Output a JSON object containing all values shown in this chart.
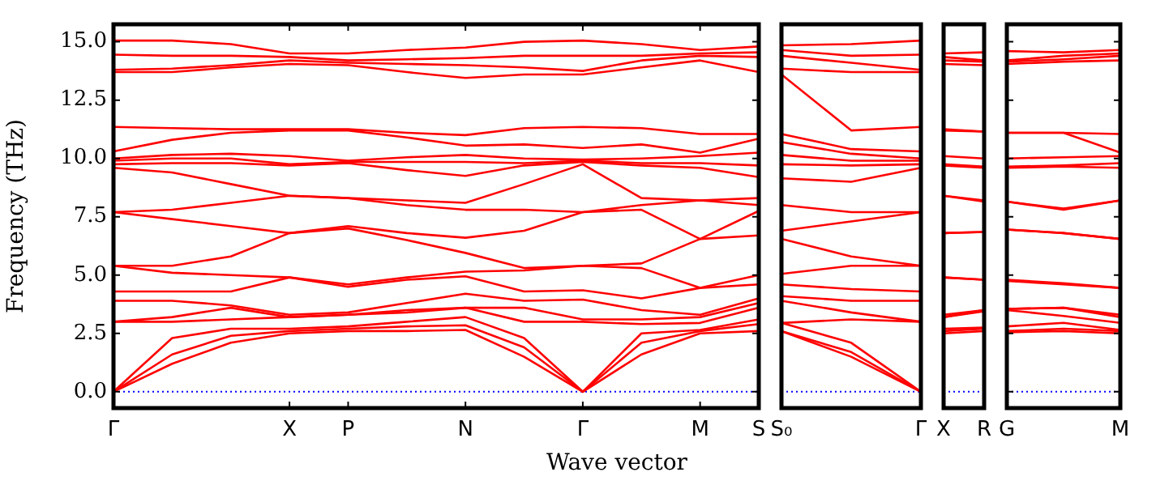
{
  "chart_data": [
    {
      "type": "line",
      "ylabel": "Frequency (THz)",
      "xlabel": "Wave vector",
      "categories": [
        "Γ",
        null,
        null,
        "X",
        "P",
        null,
        "N",
        null,
        "Γ",
        null,
        "M",
        "S"
      ],
      "ylim": [
        -0.7,
        15.75
      ],
      "yticks": [
        {
          "value": 0,
          "label": "0.0"
        },
        {
          "value": 2.5,
          "label": "2.5"
        },
        {
          "value": 5,
          "label": "5.0"
        },
        {
          "value": 7.5,
          "label": "7.5"
        },
        {
          "value": 10,
          "label": "10.0"
        },
        {
          "value": 12.5,
          "label": "12.5"
        },
        {
          "value": 15,
          "label": "15.0"
        }
      ],
      "ref_lines": [
        {
          "axis": "y",
          "value": 0,
          "color": "#0000ff",
          "line_style": "dotted"
        }
      ],
      "series": [
        {
          "color": "#ff0000",
          "values": [
            0,
            1.2,
            2.1,
            2.5,
            2.6,
            2.6,
            2.65,
            1.5,
            0,
            1.6,
            2.5,
            2.6
          ]
        },
        {
          "color": "#ff0000",
          "values": [
            0,
            1.6,
            2.4,
            2.6,
            2.7,
            2.8,
            2.85,
            1.9,
            0,
            2.1,
            2.6,
            2.9
          ]
        },
        {
          "color": "#ff0000",
          "values": [
            0,
            2.3,
            2.7,
            2.7,
            2.8,
            3.0,
            3.2,
            2.3,
            0,
            2.5,
            2.65,
            3.1
          ]
        },
        {
          "color": "#ff0000",
          "values": [
            3.0,
            3.0,
            3.1,
            3.2,
            3.3,
            3.4,
            3.6,
            3.0,
            3.0,
            2.9,
            2.95,
            3.6
          ]
        },
        {
          "color": "#ff0000",
          "values": [
            3.0,
            3.2,
            3.6,
            3.2,
            3.3,
            3.5,
            3.6,
            3.6,
            3.1,
            3.1,
            3.2,
            3.8
          ]
        },
        {
          "color": "#ff0000",
          "values": [
            3.9,
            3.9,
            3.7,
            3.3,
            3.4,
            3.8,
            4.2,
            3.9,
            3.95,
            3.5,
            3.3,
            4.0
          ]
        },
        {
          "color": "#ff0000",
          "values": [
            4.3,
            4.3,
            4.3,
            4.9,
            4.5,
            4.8,
            4.95,
            4.3,
            4.35,
            4.0,
            4.45,
            4.6
          ]
        },
        {
          "color": "#ff0000",
          "values": [
            5.4,
            5.1,
            5.0,
            4.9,
            4.6,
            4.9,
            5.15,
            5.2,
            5.4,
            5.3,
            4.45,
            5.0
          ]
        },
        {
          "color": "#ff0000",
          "values": [
            5.4,
            5.4,
            5.8,
            6.8,
            7.0,
            6.5,
            5.95,
            5.3,
            5.4,
            5.5,
            6.55,
            6.7
          ]
        },
        {
          "color": "#ff0000",
          "values": [
            7.7,
            7.4,
            7.1,
            6.8,
            7.1,
            6.8,
            6.6,
            6.9,
            7.7,
            7.8,
            6.55,
            7.75
          ]
        },
        {
          "color": "#ff0000",
          "values": [
            7.7,
            7.8,
            8.1,
            8.4,
            8.3,
            8.0,
            7.8,
            7.8,
            7.7,
            8.0,
            8.2,
            8.0
          ]
        },
        {
          "color": "#ff0000",
          "values": [
            9.6,
            9.4,
            8.9,
            8.4,
            8.3,
            8.2,
            8.1,
            8.9,
            9.75,
            8.3,
            8.2,
            8.3
          ]
        },
        {
          "color": "#ff0000",
          "values": [
            9.75,
            9.8,
            9.8,
            9.7,
            9.8,
            9.5,
            9.25,
            9.7,
            9.85,
            9.7,
            9.6,
            9.2
          ]
        },
        {
          "color": "#ff0000",
          "values": [
            9.9,
            10.0,
            10.0,
            9.75,
            9.85,
            9.85,
            9.85,
            9.8,
            9.9,
            9.8,
            9.8,
            9.7
          ]
        },
        {
          "color": "#ff0000",
          "values": [
            10.0,
            10.15,
            10.2,
            10.1,
            9.9,
            10.05,
            10.15,
            10.0,
            9.95,
            10.0,
            10.1,
            10.25
          ]
        },
        {
          "color": "#ff0000",
          "values": [
            10.3,
            10.8,
            11.1,
            11.2,
            11.2,
            10.9,
            10.55,
            10.6,
            10.45,
            10.6,
            10.25,
            10.85
          ]
        },
        {
          "color": "#ff0000",
          "values": [
            11.35,
            11.3,
            11.25,
            11.25,
            11.25,
            11.1,
            11.0,
            11.3,
            11.35,
            11.3,
            11.05,
            11.05
          ]
        },
        {
          "color": "#ff0000",
          "values": [
            13.7,
            13.7,
            13.9,
            14.05,
            14.0,
            13.7,
            13.45,
            13.6,
            13.6,
            13.9,
            14.2,
            13.7
          ]
        },
        {
          "color": "#ff0000",
          "values": [
            13.8,
            13.85,
            14.0,
            14.2,
            14.1,
            14.05,
            14.0,
            13.9,
            13.75,
            14.2,
            14.4,
            14.35
          ]
        },
        {
          "color": "#ff0000",
          "values": [
            14.45,
            14.4,
            14.4,
            14.35,
            14.2,
            14.25,
            14.3,
            14.4,
            14.4,
            14.4,
            14.5,
            14.55
          ]
        },
        {
          "color": "#ff0000",
          "values": [
            15.05,
            15.05,
            14.9,
            14.5,
            14.5,
            14.65,
            14.75,
            15.0,
            15.05,
            14.9,
            14.65,
            14.8
          ]
        }
      ]
    },
    {
      "type": "line",
      "tick_labels": "x",
      "categories": [
        "S₀",
        null,
        "Γ"
      ],
      "ylim": [
        -0.7,
        15.75
      ],
      "ref_lines": [
        {
          "axis": "y",
          "value": 0,
          "color": "#0000ff",
          "line_style": "dotted"
        }
      ],
      "series": [
        {
          "color": "#ff0000",
          "values": [
            2.6,
            1.5,
            0
          ]
        },
        {
          "color": "#ff0000",
          "values": [
            2.6,
            1.7,
            0
          ]
        },
        {
          "color": "#ff0000",
          "values": [
            2.95,
            2.1,
            0
          ]
        },
        {
          "color": "#ff0000",
          "values": [
            2.95,
            3.1,
            3.0
          ]
        },
        {
          "color": "#ff0000",
          "values": [
            3.9,
            3.4,
            3.0
          ]
        },
        {
          "color": "#ff0000",
          "values": [
            4.1,
            3.9,
            3.9
          ]
        },
        {
          "color": "#ff0000",
          "values": [
            4.6,
            4.4,
            4.3
          ]
        },
        {
          "color": "#ff0000",
          "values": [
            5.05,
            5.4,
            5.4
          ]
        },
        {
          "color": "#ff0000",
          "values": [
            6.55,
            5.8,
            5.4
          ]
        },
        {
          "color": "#ff0000",
          "values": [
            6.9,
            7.3,
            7.7
          ]
        },
        {
          "color": "#ff0000",
          "values": [
            8.0,
            7.7,
            7.7
          ]
        },
        {
          "color": "#ff0000",
          "values": [
            9.15,
            9.0,
            9.6
          ]
        },
        {
          "color": "#ff0000",
          "values": [
            9.75,
            9.7,
            9.75
          ]
        },
        {
          "color": "#ff0000",
          "values": [
            10.15,
            9.9,
            9.9
          ]
        },
        {
          "color": "#ff0000",
          "values": [
            10.7,
            10.2,
            10.0
          ]
        },
        {
          "color": "#ff0000",
          "values": [
            11.05,
            10.4,
            10.3
          ]
        },
        {
          "color": "#ff0000",
          "values": [
            13.6,
            11.2,
            11.35
          ]
        },
        {
          "color": "#ff0000",
          "values": [
            13.85,
            13.7,
            13.7
          ]
        },
        {
          "color": "#ff0000",
          "values": [
            14.4,
            14.1,
            13.8
          ]
        },
        {
          "color": "#ff0000",
          "values": [
            14.65,
            14.4,
            14.45
          ]
        },
        {
          "color": "#ff0000",
          "values": [
            14.85,
            14.9,
            15.05
          ]
        }
      ]
    },
    {
      "type": "line",
      "tick_labels": "x",
      "categories": [
        "X",
        "R"
      ],
      "ylim": [
        -0.7,
        15.75
      ],
      "ref_lines": [
        {
          "axis": "y",
          "value": 0,
          "color": "#0000ff",
          "line_style": "dotted"
        }
      ],
      "series": [
        {
          "color": "#ff0000",
          "values": [
            2.5,
            2.6
          ]
        },
        {
          "color": "#ff0000",
          "values": [
            2.6,
            2.7
          ]
        },
        {
          "color": "#ff0000",
          "values": [
            2.7,
            2.75
          ]
        },
        {
          "color": "#ff0000",
          "values": [
            3.2,
            3.45
          ]
        },
        {
          "color": "#ff0000",
          "values": [
            3.2,
            3.5
          ]
        },
        {
          "color": "#ff0000",
          "values": [
            3.3,
            3.5
          ]
        },
        {
          "color": "#ff0000",
          "values": [
            4.9,
            4.8
          ]
        },
        {
          "color": "#ff0000",
          "values": [
            4.9,
            4.8
          ]
        },
        {
          "color": "#ff0000",
          "values": [
            6.8,
            6.85
          ]
        },
        {
          "color": "#ff0000",
          "values": [
            6.8,
            6.85
          ]
        },
        {
          "color": "#ff0000",
          "values": [
            8.4,
            8.15
          ]
        },
        {
          "color": "#ff0000",
          "values": [
            8.4,
            8.2
          ]
        },
        {
          "color": "#ff0000",
          "values": [
            9.7,
            9.6
          ]
        },
        {
          "color": "#ff0000",
          "values": [
            9.75,
            9.65
          ]
        },
        {
          "color": "#ff0000",
          "values": [
            10.1,
            10.0
          ]
        },
        {
          "color": "#ff0000",
          "values": [
            11.2,
            11.15
          ]
        },
        {
          "color": "#ff0000",
          "values": [
            11.25,
            11.15
          ]
        },
        {
          "color": "#ff0000",
          "values": [
            14.05,
            14.0
          ]
        },
        {
          "color": "#ff0000",
          "values": [
            14.2,
            14.15
          ]
        },
        {
          "color": "#ff0000",
          "values": [
            14.35,
            14.2
          ]
        },
        {
          "color": "#ff0000",
          "values": [
            14.5,
            14.55
          ]
        }
      ]
    },
    {
      "type": "line",
      "tick_labels": "x",
      "categories": [
        "G",
        null,
        "M"
      ],
      "ylim": [
        -0.7,
        15.75
      ],
      "yticks": [
        {
          "value": 0,
          "label": null
        },
        {
          "value": 2.5,
          "label": null
        },
        {
          "value": 5,
          "label": null
        },
        {
          "value": 7.5,
          "label": null
        },
        {
          "value": 10,
          "label": null
        },
        {
          "value": 12.5,
          "label": null
        },
        {
          "value": 15,
          "label": null
        }
      ],
      "ref_lines": [
        {
          "axis": "y",
          "value": 0,
          "color": "#0000ff",
          "line_style": "dotted"
        }
      ],
      "series": [
        {
          "color": "#ff0000",
          "values": [
            2.55,
            2.6,
            2.5
          ]
        },
        {
          "color": "#ff0000",
          "values": [
            2.6,
            2.7,
            2.6
          ]
        },
        {
          "color": "#ff0000",
          "values": [
            2.8,
            2.95,
            2.65
          ]
        },
        {
          "color": "#ff0000",
          "values": [
            3.5,
            3.25,
            2.95
          ]
        },
        {
          "color": "#ff0000",
          "values": [
            3.55,
            3.6,
            3.2
          ]
        },
        {
          "color": "#ff0000",
          "values": [
            3.55,
            3.6,
            3.3
          ]
        },
        {
          "color": "#ff0000",
          "values": [
            4.75,
            4.6,
            4.45
          ]
        },
        {
          "color": "#ff0000",
          "values": [
            4.8,
            4.65,
            4.45
          ]
        },
        {
          "color": "#ff0000",
          "values": [
            6.95,
            6.8,
            6.55
          ]
        },
        {
          "color": "#ff0000",
          "values": [
            6.95,
            6.8,
            6.55
          ]
        },
        {
          "color": "#ff0000",
          "values": [
            8.15,
            7.8,
            8.2
          ]
        },
        {
          "color": "#ff0000",
          "values": [
            8.15,
            7.85,
            8.2
          ]
        },
        {
          "color": "#ff0000",
          "values": [
            9.6,
            9.65,
            9.6
          ]
        },
        {
          "color": "#ff0000",
          "values": [
            9.65,
            9.7,
            9.8
          ]
        },
        {
          "color": "#ff0000",
          "values": [
            10.0,
            10.05,
            10.1
          ]
        },
        {
          "color": "#ff0000",
          "values": [
            11.1,
            11.1,
            10.25
          ]
        },
        {
          "color": "#ff0000",
          "values": [
            11.1,
            11.1,
            11.05
          ]
        },
        {
          "color": "#ff0000",
          "values": [
            14.05,
            14.15,
            14.2
          ]
        },
        {
          "color": "#ff0000",
          "values": [
            14.15,
            14.25,
            14.4
          ]
        },
        {
          "color": "#ff0000",
          "values": [
            14.2,
            14.4,
            14.5
          ]
        },
        {
          "color": "#ff0000",
          "values": [
            14.6,
            14.55,
            14.65
          ]
        }
      ]
    }
  ]
}
